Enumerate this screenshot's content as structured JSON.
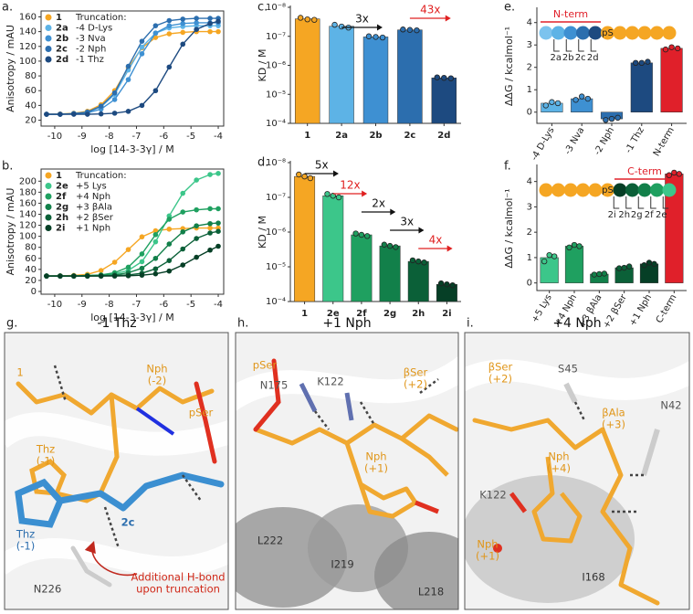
{
  "chart_data": [
    {
      "type": "line",
      "panel_label": "a.",
      "xlabel": "log [14-3-3γ] / M",
      "ylabel": "Anisotropy / mAU",
      "legend_title": "Truncation:",
      "x": [
        -10.3,
        -9.8,
        -9.3,
        -8.8,
        -8.3,
        -7.8,
        -7.3,
        -6.8,
        -6.3,
        -5.8,
        -5.3,
        -4.8,
        -4.3,
        -4.0
      ],
      "xlim": [
        -10.5,
        -3.8
      ],
      "xticks": [
        -10,
        -9,
        -8,
        -7,
        -6,
        -5,
        -4
      ],
      "ylim": [
        12,
        168
      ],
      "yticks": [
        20,
        40,
        60,
        80,
        100,
        120,
        140,
        160
      ],
      "series": [
        {
          "name": "1",
          "color": "#f5a623",
          "values": [
            28,
            28.4,
            29.4,
            32,
            41,
            60,
            91,
            118,
            132,
            137,
            139,
            140,
            140,
            140
          ]
        },
        {
          "name": "2a",
          "description": "-4 D-Lys",
          "color": "#5db3e6",
          "values": [
            28,
            28,
            29,
            31,
            38,
            55,
            88,
            119,
            138,
            145,
            147,
            148,
            148,
            148
          ]
        },
        {
          "name": "2b",
          "description": "-3 Nva",
          "color": "#3e90d2",
          "values": [
            28,
            28,
            28.5,
            30,
            35,
            48,
            75,
            110,
            138,
            148,
            151,
            152,
            152,
            152
          ]
        },
        {
          "name": "2c",
          "description": "-2 Nph",
          "color": "#2c6eae",
          "values": [
            28,
            28,
            29,
            31,
            39,
            57,
            93,
            127,
            148,
            155,
            157,
            158,
            158,
            158
          ]
        },
        {
          "name": "2d",
          "description": "-1 Thz",
          "color": "#1d4a80",
          "values": [
            28,
            28,
            28,
            28,
            28.5,
            29.5,
            32,
            40,
            60,
            92,
            123,
            143,
            151,
            154
          ]
        }
      ]
    },
    {
      "type": "line",
      "panel_label": "b.",
      "xlabel": "log [14-3-3γ] / M",
      "ylabel": "Anisotropy / mAU",
      "legend_title": "Truncation:",
      "x": [
        -10.3,
        -9.8,
        -9.3,
        -8.8,
        -8.3,
        -7.8,
        -7.3,
        -6.8,
        -6.3,
        -5.8,
        -5.3,
        -4.8,
        -4.3,
        -4.0
      ],
      "xlim": [
        -10.5,
        -3.8
      ],
      "xticks": [
        -10,
        -9,
        -8,
        -7,
        -6,
        -5,
        -4
      ],
      "ylim": [
        -5,
        222
      ],
      "yticks": [
        0,
        20,
        40,
        60,
        80,
        100,
        120,
        140,
        160,
        180,
        200
      ],
      "series": [
        {
          "name": "1",
          "color": "#f5a623",
          "values": [
            28,
            28.3,
            29,
            31,
            38,
            53,
            76,
            99,
            110,
            113,
            114,
            115,
            115,
            115
          ]
        },
        {
          "name": "2e",
          "description": "+5 Lys",
          "color": "#3cc68a",
          "values": [
            28,
            28,
            28,
            28.5,
            29.5,
            32,
            38,
            54,
            90,
            137,
            178,
            202,
            212,
            214
          ]
        },
        {
          "name": "2f",
          "description": "+4 Nph",
          "color": "#1fa060",
          "values": [
            28,
            28,
            28,
            29,
            30,
            34,
            44,
            68,
            103,
            131,
            144,
            148,
            150,
            150
          ]
        },
        {
          "name": "2g",
          "description": "+3 βAla",
          "color": "#12804a",
          "values": [
            28,
            28,
            28,
            28,
            29,
            30,
            34,
            42,
            60,
            86,
            108,
            119,
            123,
            124
          ]
        },
        {
          "name": "2h",
          "description": "+2 βSer",
          "color": "#0b6038",
          "values": [
            28,
            28,
            28,
            28,
            28,
            29,
            30,
            33,
            41,
            56,
            77,
            96,
            106,
            109
          ]
        },
        {
          "name": "2i",
          "description": "+1 Nph",
          "color": "#063f26",
          "values": [
            28,
            28,
            28,
            28,
            28,
            28,
            28.5,
            29.5,
            32,
            37,
            48,
            62,
            75,
            82
          ]
        }
      ]
    },
    {
      "type": "bar",
      "panel_label": "c.",
      "ylabel": "KD / M",
      "log_scale": true,
      "categories": [
        "1",
        "2a",
        "2b",
        "2c",
        "2d"
      ],
      "values": [
        2.5e-08,
        4.5e-08,
        1.05e-07,
        6e-08,
        2.7e-06
      ],
      "points": [
        [
          2.3e-08,
          2.6e-08,
          2.7e-08
        ],
        [
          4e-08,
          4.6e-08,
          5e-08
        ],
        [
          1e-07,
          1.05e-07,
          1.1e-07
        ],
        [
          5.8e-08,
          6e-08,
          6.2e-08
        ],
        [
          2.6e-06,
          2.7e-06,
          2.8e-06
        ]
      ],
      "colors": [
        "#f5a623",
        "#5db3e6",
        "#3e90d2",
        "#2c6eae",
        "#1d4a80"
      ],
      "ylim": [
        0.0001,
        1e-08
      ],
      "yticks": [
        {
          "value": 1e-08,
          "label": "10⁻⁸"
        },
        {
          "value": 1e-07,
          "label": "10⁻⁷"
        },
        {
          "value": 1e-06,
          "label": "10⁻⁶"
        },
        {
          "value": 1e-05,
          "label": "10⁻⁵"
        },
        {
          "value": 0.0001,
          "label": "10⁻⁴"
        }
      ],
      "annotations": [
        {
          "text": "3x",
          "color": "#111111"
        },
        {
          "text": "43x",
          "color": "#e02020"
        }
      ]
    },
    {
      "type": "bar",
      "panel_label": "d.",
      "ylabel": "KD / M",
      "log_scale": true,
      "categories": [
        "1",
        "2e",
        "2f",
        "2g",
        "2h",
        "2i"
      ],
      "values": [
        2.5e-08,
        9e-08,
        1.2e-06,
        2.5e-06,
        7e-06,
        3.2e-05
      ],
      "points": [
        [
          2.2e-08,
          2.5e-08,
          2.8e-08
        ],
        [
          8e-08,
          9e-08,
          1e-07
        ],
        [
          1.1e-06,
          1.2e-06,
          1.3e-06
        ],
        [
          2.3e-06,
          2.5e-06,
          2.7e-06
        ],
        [
          6.5e-06,
          7e-06,
          7.5e-06
        ],
        [
          3e-05,
          3.2e-05,
          3.4e-05
        ]
      ],
      "colors": [
        "#f5a623",
        "#3cc68a",
        "#1fa060",
        "#12804a",
        "#0b6038",
        "#063f26"
      ],
      "ylim": [
        0.0001,
        1e-08
      ],
      "yticks": [
        {
          "value": 1e-08,
          "label": "10⁻⁸"
        },
        {
          "value": 1e-07,
          "label": "10⁻⁷"
        },
        {
          "value": 1e-06,
          "label": "10⁻⁶"
        },
        {
          "value": 1e-05,
          "label": "10⁻⁵"
        },
        {
          "value": 0.0001,
          "label": "10⁻⁴"
        }
      ],
      "annotations": [
        {
          "text": "5x",
          "color": "#111111"
        },
        {
          "text": "12x",
          "color": "#e02020"
        },
        {
          "text": "2x",
          "color": "#111111"
        },
        {
          "text": "3x",
          "color": "#111111"
        },
        {
          "text": "4x",
          "color": "#e02020"
        }
      ]
    },
    {
      "type": "bar",
      "panel_label": "e.",
      "ylabel": "ΔΔG / kcalmol⁻¹",
      "categories": [
        "-4 D-Lys",
        "-3 Nva",
        "-2 Nph",
        "-1 Thz",
        "N-term"
      ],
      "values": [
        0.4,
        0.6,
        -0.3,
        2.2,
        2.85
      ],
      "points": [
        [
          0.3,
          0.45,
          0.4
        ],
        [
          0.55,
          0.7,
          0.6
        ],
        [
          -0.35,
          -0.3,
          -0.25
        ],
        [
          2.2,
          2.2,
          2.25
        ],
        [
          2.8,
          2.9,
          2.85
        ]
      ],
      "colors": [
        "#5db3e6",
        "#3e90d2",
        "#2c6eae",
        "#1d4a80",
        "#e0202a"
      ],
      "ylim": [
        -0.5,
        4.6
      ],
      "yticks": [
        0,
        1,
        2,
        3,
        4
      ],
      "schematic": {
        "group_label": "N-term",
        "site_label": "pS",
        "residue_labels": [
          "2a",
          "2b",
          "2c",
          "2d"
        ]
      }
    },
    {
      "type": "bar",
      "panel_label": "f.",
      "ylabel": "ΔΔG / kcalmol⁻¹",
      "categories": [
        "+5 Lys",
        "+4 Nph",
        "+3 βAla",
        "+2 βSer",
        "+1 Nph",
        "C-term"
      ],
      "values": [
        1.0,
        1.45,
        0.35,
        0.6,
        0.75,
        4.3
      ],
      "points": [
        [
          0.85,
          1.1,
          1.05
        ],
        [
          1.4,
          1.5,
          1.45
        ],
        [
          0.33,
          0.35,
          0.37
        ],
        [
          0.58,
          0.6,
          0.65
        ],
        [
          0.7,
          0.8,
          0.75
        ],
        [
          4.25,
          4.35,
          4.3
        ]
      ],
      "colors": [
        "#3cc68a",
        "#1fa060",
        "#12804a",
        "#0b6038",
        "#063f26",
        "#e0202a"
      ],
      "ylim": [
        -0.3,
        4.6
      ],
      "yticks": [
        0,
        1,
        2,
        3,
        4
      ],
      "schematic": {
        "group_label": "C-term",
        "site_label": "pS",
        "residue_labels": [
          "2i",
          "2h",
          "2g",
          "2f",
          "2e"
        ]
      }
    }
  ],
  "structures": [
    {
      "panel_label": "g.",
      "title": "-1 Thz",
      "labels": [
        [
          "1"
        ],
        [
          "Nph",
          "(-2)"
        ],
        [
          "pSer"
        ],
        [
          "Thz",
          "(-1)"
        ],
        [
          "Thz",
          "(-1)"
        ],
        [
          "2c"
        ],
        [
          "N226"
        ],
        [
          "Additional H-bond",
          "upon truncation"
        ]
      ]
    },
    {
      "panel_label": "h.",
      "title": "+1 Nph",
      "labels": [
        [
          "pSer"
        ],
        [
          "N175"
        ],
        [
          "K122"
        ],
        [
          "βSer",
          "(+2)"
        ],
        [
          "Nph",
          "(+1)"
        ],
        [
          "L222"
        ],
        [
          "I219"
        ],
        [
          "L218"
        ]
      ]
    },
    {
      "panel_label": "i.",
      "title": "+4 Nph",
      "labels": [
        [
          "S45"
        ],
        [
          "βSer",
          "(+2)"
        ],
        [
          "βAla",
          "(+3)"
        ],
        [
          "N42"
        ],
        [
          "K122"
        ],
        [
          "Nph",
          "(+4)"
        ],
        [
          "Nph",
          "(+1)"
        ],
        [
          "I168"
        ]
      ]
    }
  ]
}
